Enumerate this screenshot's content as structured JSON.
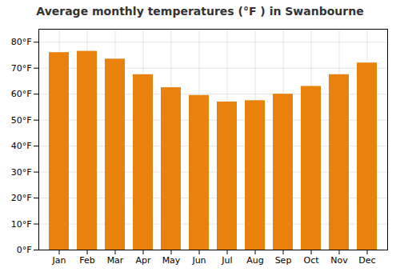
{
  "chart_data": {
    "type": "bar",
    "title": "Average monthly temperatures (°F ) in Swanbourne",
    "categories": [
      "Jan",
      "Feb",
      "Mar",
      "Apr",
      "May",
      "Jun",
      "Jul",
      "Aug",
      "Sep",
      "Oct",
      "Nov",
      "Dec"
    ],
    "values": [
      76,
      76.5,
      73.5,
      67.5,
      62.5,
      59.5,
      57,
      57.5,
      60,
      63,
      67.5,
      72
    ],
    "color": "#E8820C",
    "ylim": [
      0,
      85
    ],
    "yticks": [
      {
        "value": 0,
        "label": "0°F"
      },
      {
        "value": 10,
        "label": "10°F"
      },
      {
        "value": 20,
        "label": "20°F"
      },
      {
        "value": 30,
        "label": "30°F"
      },
      {
        "value": 40,
        "label": "40°F"
      },
      {
        "value": 50,
        "label": "50°F"
      },
      {
        "value": 60,
        "label": "60°F"
      },
      {
        "value": 70,
        "label": "70°F"
      },
      {
        "value": 80,
        "label": "80°F"
      }
    ],
    "grid": true
  }
}
